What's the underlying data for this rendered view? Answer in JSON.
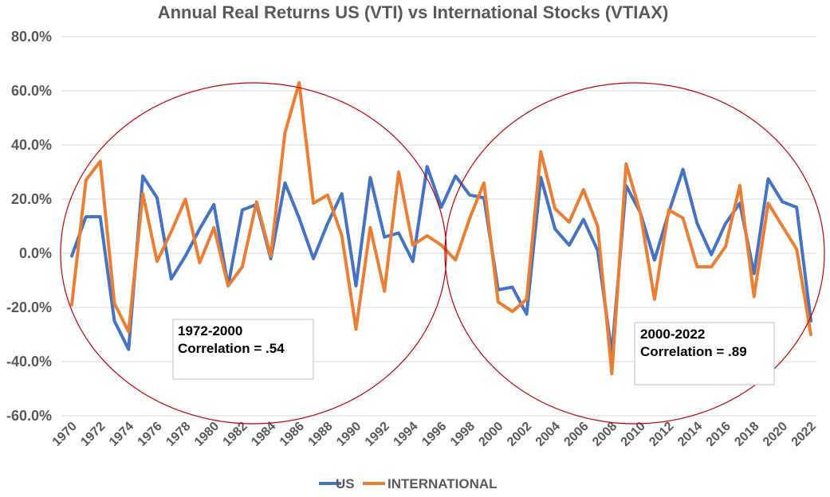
{
  "chart_data": {
    "type": "line",
    "title": "Annual Real Returns US (VTI) vs International Stocks (VTIAX)",
    "xlabel": "",
    "ylabel": "",
    "ylim": [
      -60,
      80
    ],
    "y_ticks": [
      "-60.0%",
      "-40.0%",
      "-20.0%",
      "0.0%",
      "20.0%",
      "40.0%",
      "60.0%",
      "80.0%"
    ],
    "y_tick_values": [
      -60,
      -40,
      -20,
      0,
      20,
      40,
      60,
      80
    ],
    "x_tick_labels": [
      "1970",
      "1972",
      "1974",
      "1976",
      "1978",
      "1980",
      "1982",
      "1984",
      "1986",
      "1988",
      "1990",
      "1992",
      "1994",
      "1996",
      "1998",
      "2000",
      "2002",
      "2004",
      "2006",
      "2008",
      "2010",
      "2012",
      "2014",
      "2016",
      "2018",
      "2020",
      "2022"
    ],
    "x": [
      1970,
      1971,
      1972,
      1973,
      1974,
      1975,
      1976,
      1977,
      1978,
      1979,
      1980,
      1981,
      1982,
      1983,
      1984,
      1985,
      1986,
      1987,
      1988,
      1989,
      1990,
      1991,
      1992,
      1993,
      1994,
      1995,
      1996,
      1997,
      1998,
      1999,
      2000,
      2001,
      2002,
      2003,
      2004,
      2005,
      2006,
      2007,
      2008,
      2009,
      2010,
      2011,
      2012,
      2013,
      2014,
      2015,
      2016,
      2017,
      2018,
      2019,
      2020,
      2021,
      2022
    ],
    "grid": true,
    "legend_position": "bottom",
    "series": [
      {
        "name": "US",
        "color": "#4472C4",
        "values": [
          -1,
          13.5,
          13.5,
          -25,
          -35.5,
          28.5,
          20.5,
          -9.5,
          -1,
          9,
          18,
          -12,
          16,
          18,
          -2,
          26,
          13,
          -2,
          11,
          22,
          -12,
          28,
          6,
          7.5,
          -3,
          32,
          17,
          28.5,
          21.5,
          20.5,
          -13.5,
          -12.5,
          -22.5,
          28,
          9,
          3,
          12.5,
          1,
          -37,
          25,
          15,
          -2.5,
          15,
          31,
          11,
          -0.5,
          11,
          18.5,
          -7.5,
          27.5,
          19,
          17,
          -25
        ]
      },
      {
        "name": "INTERNATIONAL",
        "color": "#ED7D31",
        "values": [
          -19,
          27,
          34,
          -18.5,
          -29,
          22,
          -3,
          8,
          20,
          -3.5,
          9.5,
          -12,
          -5,
          19,
          -1,
          44.5,
          63,
          18.5,
          21.5,
          6.5,
          -28,
          9.5,
          -14,
          30,
          3,
          6.5,
          3,
          -2.5,
          13,
          26,
          -18,
          -21.5,
          -17,
          37.5,
          16.5,
          11.5,
          23.5,
          10,
          -44.5,
          33,
          15,
          -17,
          16,
          13,
          -5,
          -5,
          2.5,
          25,
          -16,
          18.5,
          10,
          1.5,
          -30
        ]
      }
    ],
    "annotations": [
      {
        "period": "1972-2000",
        "text": "Correlation = .54"
      },
      {
        "period": "2000-2022",
        "text": "Correlation = .89"
      }
    ]
  },
  "legend": [
    {
      "label": "US",
      "color": "#4472C4"
    },
    {
      "label": "INTERNATIONAL",
      "color": "#ED7D31"
    }
  ]
}
